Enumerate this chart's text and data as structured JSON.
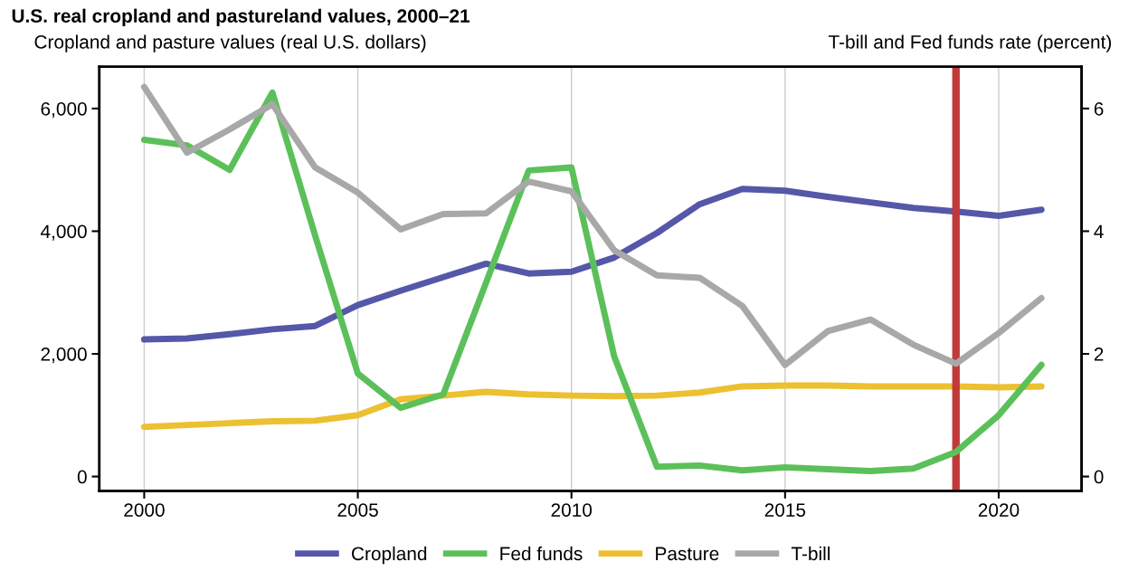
{
  "chart_data": {
    "type": "line",
    "title": "U.S. real cropland and pastureland values, 2000–21",
    "ylabel": "Cropland and pasture values (real U.S. dollars)",
    "y2label": "T-bill and Fed funds rate (percent)",
    "x": [
      2000,
      2001,
      2002,
      2003,
      2004,
      2005,
      2006,
      2007,
      2008,
      2009,
      2010,
      2011,
      2012,
      2013,
      2014,
      2015,
      2016,
      2017,
      2018,
      2019,
      2020,
      2021
    ],
    "xlim": [
      1998.95,
      2021.94
    ],
    "xticks": [
      2000,
      2005,
      2010,
      2015,
      2020
    ],
    "ylim": [
      -235,
      6680
    ],
    "yticks": [
      {
        "value": 0,
        "label": "0"
      },
      {
        "value": 2000,
        "label": "2,000"
      },
      {
        "value": 4000,
        "label": "4,000"
      },
      {
        "value": 6000,
        "label": "6,000"
      }
    ],
    "y2lim": [
      -0.235,
      6.68
    ],
    "y2ticks": [
      0,
      2,
      4,
      6
    ],
    "grid": "x",
    "legend": "bottom",
    "ref_lines": [
      {
        "axis": "x",
        "value": 2019,
        "color": "#c0393b"
      }
    ],
    "series": [
      {
        "name": "Cropland",
        "color": "#5557a8",
        "values": [
          2235,
          2250,
          2320,
          2400,
          2455,
          2795,
          3030,
          3250,
          3470,
          3310,
          3340,
          3570,
          3970,
          4440,
          4690,
          4660,
          4560,
          4470,
          4380,
          4320,
          4250,
          4350
        ]
      },
      {
        "name": "Fed funds",
        "color": "#5cc05a",
        "axis": "y2",
        "values": [
          5.49,
          5.4,
          5.0,
          6.26,
          3.93,
          1.68,
          1.12,
          1.34,
          3.16,
          4.99,
          5.04,
          1.96,
          0.16,
          0.18,
          0.1,
          0.15,
          0.12,
          0.09,
          0.13,
          0.4,
          1.0,
          1.82
        ]
      },
      {
        "name": "Pasture",
        "color": "#ecc030",
        "values": [
          810,
          840,
          870,
          900,
          910,
          1000,
          1260,
          1320,
          1380,
          1340,
          1320,
          1310,
          1320,
          1370,
          1470,
          1485,
          1485,
          1470,
          1470,
          1470,
          1455,
          1470
        ]
      },
      {
        "name": "T-bill",
        "color": "#a8a8a8",
        "axis": "y2",
        "values": [
          6.35,
          5.28,
          5.66,
          6.07,
          5.04,
          4.63,
          4.03,
          4.28,
          4.29,
          4.81,
          4.65,
          3.69,
          3.28,
          3.24,
          2.78,
          1.82,
          2.37,
          2.56,
          2.15,
          1.84,
          2.34,
          2.91
        ]
      }
    ]
  }
}
